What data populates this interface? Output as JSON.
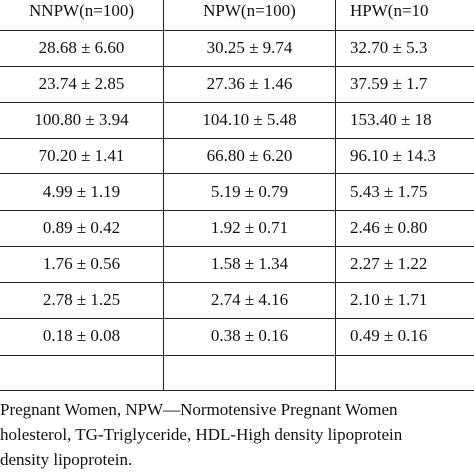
{
  "table": {
    "headers": [
      "NNPW(n=100)",
      "NPW(n=100)",
      "HPW(n=10"
    ],
    "rows": [
      [
        "28.68 ± 6.60",
        "30.25 ± 9.74",
        "32.70 ± 5.3"
      ],
      [
        "23.74 ± 2.85",
        "27.36 ± 1.46",
        "37.59 ± 1.7"
      ],
      [
        "100.80 ± 3.94",
        "104.10 ± 5.48",
        "153.40 ± 18"
      ],
      [
        "70.20 ± 1.41",
        "66.80 ± 6.20",
        "96.10 ± 14.3"
      ],
      [
        "4.99 ± 1.19",
        "5.19 ± 0.79",
        "5.43 ± 1.75"
      ],
      [
        "0.89 ± 0.42",
        "1.92 ± 0.71",
        "2.46 ± 0.80"
      ],
      [
        "1.76 ± 0.56",
        "1.58 ± 1.34",
        "2.27 ± 1.22"
      ],
      [
        "2.78 ± 1.25",
        "2.74 ± 4.16",
        "2.10 ± 1.71"
      ],
      [
        "0.18 ± 0.08",
        "0.38 ± 0.16",
        "0.49 ± 0.16"
      ],
      [
        "",
        "",
        ""
      ]
    ]
  },
  "footnote": {
    "line1": "Pregnant Women, NPW—Normotensive Pregnant Women",
    "line2": "holesterol, TG-Triglyceride, HDL-High density lipoprotein",
    "line3": "density lipoprotein."
  }
}
